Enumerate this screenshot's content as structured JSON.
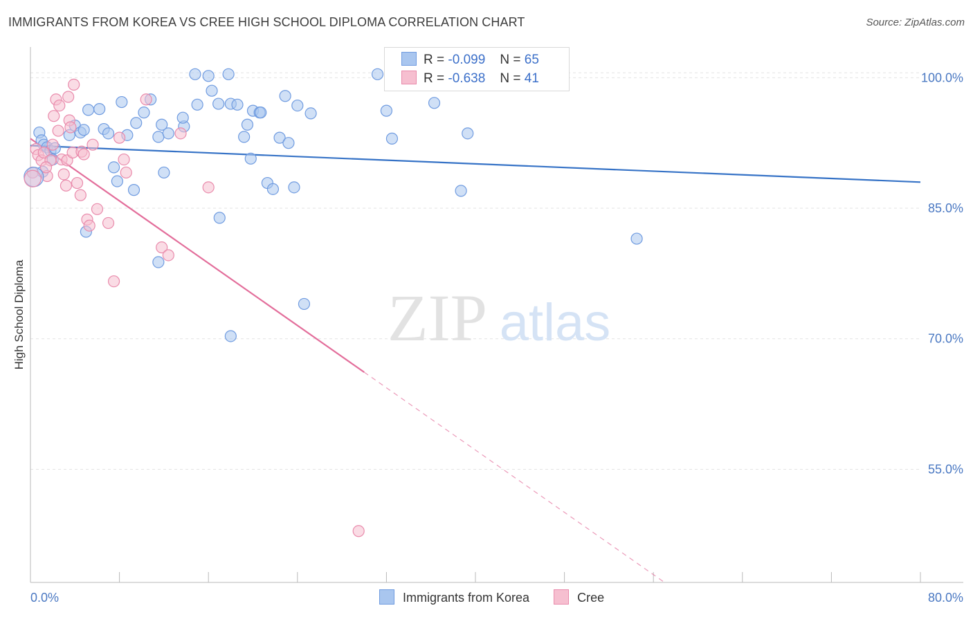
{
  "title": "IMMIGRANTS FROM KOREA VS CREE HIGH SCHOOL DIPLOMA CORRELATION CHART",
  "source": "Source: ZipAtlas.com",
  "watermark": {
    "zip": "ZIP",
    "atlas": "atlas"
  },
  "legend": {
    "rows": [
      {
        "r_label": "R =",
        "r_value": "-0.099",
        "n_label": "N =",
        "n_value": "65",
        "color": "#a9c6ef",
        "border": "#6f9be0"
      },
      {
        "r_label": "R =",
        "r_value": "-0.638",
        "n_label": "N =",
        "n_value": "41",
        "color": "#f6bfd0",
        "border": "#e98aab"
      }
    ]
  },
  "chart_data": {
    "type": "scatter",
    "title": "IMMIGRANTS FROM KOREA VS CREE HIGH SCHOOL DIPLOMA CORRELATION CHART",
    "xlabel": "",
    "ylabel": "High School Diploma",
    "xlim": [
      0,
      80
    ],
    "ylim": [
      42,
      104
    ],
    "x_tick_labels": [
      "0.0%",
      "80.0%"
    ],
    "y_ticks": [
      55,
      70,
      85,
      100
    ],
    "y_tick_labels": [
      "55.0%",
      "70.0%",
      "85.0%",
      "100.0%"
    ],
    "grid": true,
    "legend_position": "top-center",
    "series": [
      {
        "name": "Immigrants from Korea",
        "color": "#a9c6ef",
        "edge": "#6f9be0",
        "line_color": "#3572c6",
        "trend": {
          "x": [
            0,
            80
          ],
          "y": [
            92.2,
            88.0
          ],
          "solid_until": 80
        },
        "points": [
          [
            0.8,
            93.7
          ],
          [
            1.0,
            92.8
          ],
          [
            1.2,
            92.3
          ],
          [
            1.5,
            92.0
          ],
          [
            1.8,
            91.6
          ],
          [
            2.0,
            90.6
          ],
          [
            2.2,
            91.9
          ],
          [
            3.5,
            93.4
          ],
          [
            4.0,
            94.5
          ],
          [
            4.5,
            93.7
          ],
          [
            4.8,
            94.0
          ],
          [
            5.2,
            96.3
          ],
          [
            6.2,
            96.4
          ],
          [
            6.6,
            94.1
          ],
          [
            7.0,
            93.6
          ],
          [
            7.5,
            89.7
          ],
          [
            8.2,
            97.2
          ],
          [
            8.7,
            93.4
          ],
          [
            9.5,
            94.8
          ],
          [
            10.2,
            96.0
          ],
          [
            10.8,
            97.5
          ],
          [
            11.5,
            93.2
          ],
          [
            11.8,
            94.6
          ],
          [
            12.0,
            89.1
          ],
          [
            12.4,
            93.6
          ],
          [
            13.8,
            94.4
          ],
          [
            13.7,
            95.4
          ],
          [
            14.8,
            100.4
          ],
          [
            15.0,
            96.9
          ],
          [
            16.0,
            100.2
          ],
          [
            16.3,
            98.5
          ],
          [
            16.9,
            97.0
          ],
          [
            17.0,
            83.9
          ],
          [
            17.8,
            100.4
          ],
          [
            18.0,
            97.0
          ],
          [
            18.6,
            96.9
          ],
          [
            19.2,
            93.2
          ],
          [
            19.8,
            90.7
          ],
          [
            19.5,
            94.6
          ],
          [
            20.0,
            96.2
          ],
          [
            20.6,
            96.0
          ],
          [
            20.7,
            96.0
          ],
          [
            21.3,
            87.9
          ],
          [
            21.8,
            87.2
          ],
          [
            22.4,
            93.1
          ],
          [
            22.9,
            97.9
          ],
          [
            23.2,
            92.5
          ],
          [
            23.7,
            87.4
          ],
          [
            24.0,
            96.8
          ],
          [
            24.6,
            74.0
          ],
          [
            25.2,
            95.9
          ],
          [
            31.2,
            100.4
          ],
          [
            32.0,
            96.2
          ],
          [
            32.5,
            93.0
          ],
          [
            36.3,
            97.1
          ],
          [
            38.7,
            87.0
          ],
          [
            39.3,
            93.6
          ],
          [
            41.0,
            100.4
          ],
          [
            54.5,
            81.5
          ],
          [
            5.0,
            82.3
          ],
          [
            7.8,
            88.1
          ],
          [
            9.3,
            87.1
          ],
          [
            11.5,
            78.8
          ],
          [
            18.0,
            70.3
          ],
          [
            1.1,
            89.2
          ]
        ]
      },
      {
        "name": "Cree",
        "color": "#f6bfd0",
        "edge": "#e98aab",
        "line_color": "#e36e9b",
        "trend": {
          "x": [
            0,
            57
          ],
          "y": [
            93.0,
            42.0
          ],
          "solid_until": 30
        },
        "points": [
          [
            0.5,
            91.8
          ],
          [
            0.7,
            91.1
          ],
          [
            1.0,
            90.5
          ],
          [
            1.2,
            91.4
          ],
          [
            1.5,
            88.7
          ],
          [
            1.8,
            90.5
          ],
          [
            2.0,
            92.3
          ],
          [
            2.1,
            95.6
          ],
          [
            2.3,
            97.5
          ],
          [
            2.5,
            93.9
          ],
          [
            2.6,
            96.8
          ],
          [
            2.8,
            90.6
          ],
          [
            3.0,
            88.9
          ],
          [
            3.2,
            87.6
          ],
          [
            3.3,
            90.5
          ],
          [
            3.4,
            97.8
          ],
          [
            3.5,
            95.1
          ],
          [
            3.6,
            94.3
          ],
          [
            3.8,
            91.4
          ],
          [
            3.9,
            99.2
          ],
          [
            4.2,
            87.9
          ],
          [
            4.5,
            86.5
          ],
          [
            4.6,
            91.5
          ],
          [
            4.8,
            91.2
          ],
          [
            5.1,
            83.7
          ],
          [
            5.3,
            83.0
          ],
          [
            5.6,
            92.3
          ],
          [
            6.0,
            84.9
          ],
          [
            7.0,
            83.3
          ],
          [
            7.5,
            76.6
          ],
          [
            8.0,
            93.1
          ],
          [
            8.4,
            90.6
          ],
          [
            8.6,
            89.1
          ],
          [
            10.4,
            97.5
          ],
          [
            11.8,
            80.5
          ],
          [
            12.4,
            79.6
          ],
          [
            13.5,
            93.6
          ],
          [
            16.0,
            87.4
          ],
          [
            29.5,
            47.9
          ],
          [
            0.2,
            89.1
          ],
          [
            1.4,
            89.7
          ]
        ]
      }
    ]
  }
}
